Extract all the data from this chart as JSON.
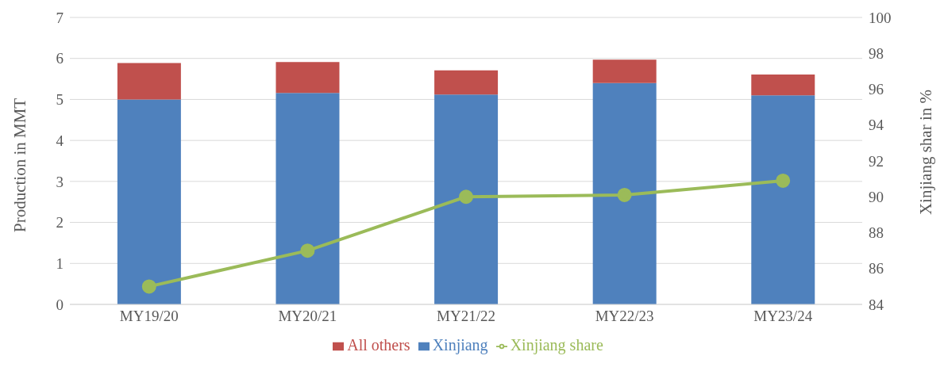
{
  "chart_data": {
    "type": "bar",
    "stacked": true,
    "categories": [
      "MY19/20",
      "MY20/21",
      "MY21/22",
      "MY22/23",
      "MY23/24"
    ],
    "series": [
      {
        "name": "Xinjiang",
        "color": "#4f81bd",
        "values": [
          5.0,
          5.16,
          5.12,
          5.4,
          5.1
        ]
      },
      {
        "name": "All others",
        "color": "#c0504d",
        "values": [
          0.89,
          0.75,
          0.59,
          0.57,
          0.51
        ]
      },
      {
        "name": "Xinjiang share",
        "type": "line",
        "axis": "y2",
        "color": "#9bbb59",
        "values": [
          85,
          87,
          90,
          90.1,
          90.9
        ]
      }
    ],
    "ylabel": "Production in MMT",
    "y2label": "Xinjiang shar in %",
    "ylim": [
      0,
      7
    ],
    "yticks": [
      0,
      1,
      2,
      3,
      4,
      5,
      6,
      7
    ],
    "y2lim": [
      84,
      100
    ],
    "y2ticks": [
      84,
      86,
      88,
      90,
      92,
      94,
      96,
      98,
      100
    ],
    "grid": "y",
    "legend": "bottom",
    "marker": "circle"
  }
}
